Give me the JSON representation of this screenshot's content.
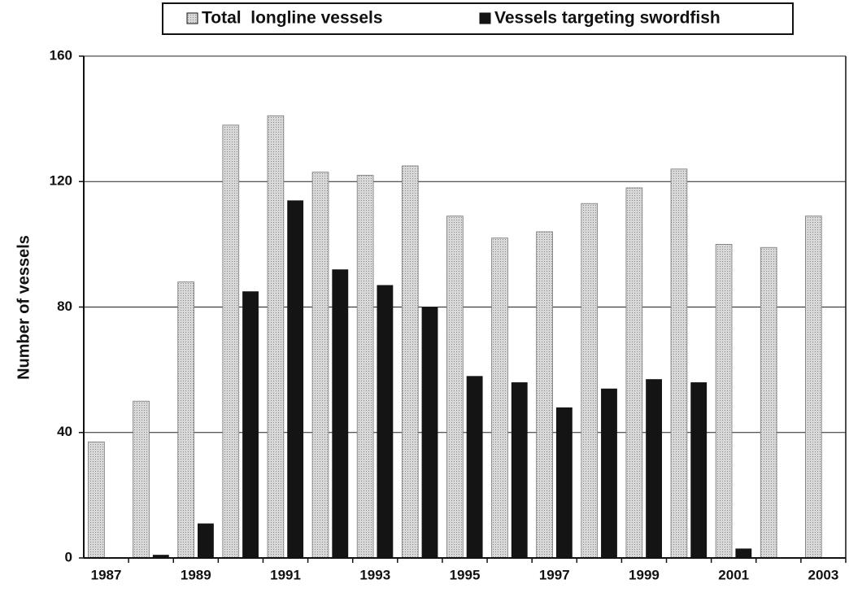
{
  "chart_data": {
    "type": "bar",
    "y_label": "Number of vessels",
    "categories": [
      "1987",
      null,
      "1989",
      null,
      "1991",
      null,
      "1993",
      null,
      "1995",
      null,
      "1997",
      null,
      "1999",
      null,
      "2001",
      null,
      "2003"
    ],
    "series": [
      {
        "name": "Total  longline vessels",
        "color": "#c4c4c4",
        "values": [
          37,
          50,
          88,
          138,
          141,
          123,
          122,
          125,
          109,
          102,
          104,
          113,
          118,
          124,
          100,
          99,
          109
        ]
      },
      {
        "name": "Vessels targeting swordfish",
        "color": "#141414",
        "values": [
          0,
          1,
          11,
          85,
          114,
          92,
          87,
          80,
          58,
          56,
          48,
          54,
          57,
          56,
          3,
          0,
          0
        ]
      }
    ],
    "ylim": [
      0,
      160
    ],
    "yticks": [
      0,
      40,
      80,
      120,
      160
    ],
    "grid": true,
    "legend": "top"
  }
}
